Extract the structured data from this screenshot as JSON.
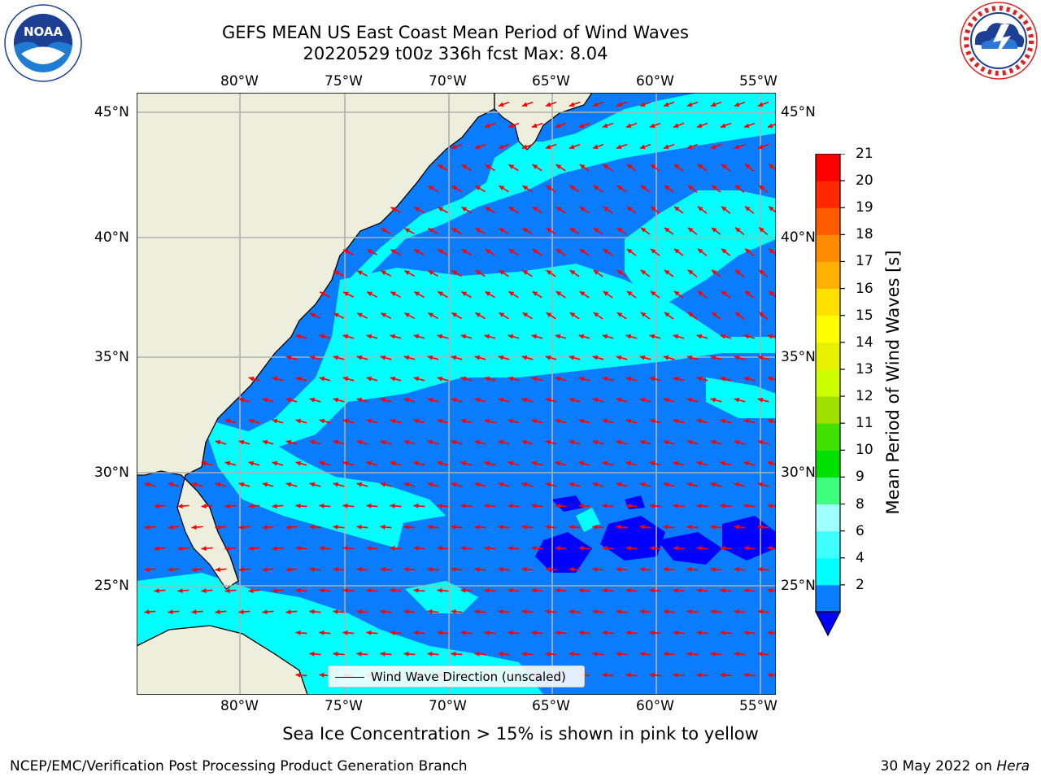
{
  "header": {
    "title_line1": "GEFS MEAN US East Coast Mean Period of Wind Waves",
    "title_line2": "20220529 t00z 336h fcst   Max: 8.04"
  },
  "logos": {
    "left": "NOAA",
    "left_ring": "NATIONAL OCEANIC AND ATMOSPHERIC ADMINISTRATION · U.S. DEPARTMENT OF COMMERCE",
    "right_ring": "NATIONAL WEATHER SERVICE"
  },
  "map": {
    "lon_labels": [
      "80°W",
      "75°W",
      "70°W",
      "65°W",
      "60°W",
      "55°W"
    ],
    "lat_labels": [
      "45°N",
      "40°N",
      "35°N",
      "30°N",
      "25°N"
    ],
    "lon_range": [
      -85,
      -54.7
    ],
    "lat_range": [
      20.5,
      46
    ],
    "legend_text": "Wind Wave Direction (unscaled)",
    "colors": {
      "land": "#eeeedc",
      "band_2_4": "#0a7cff",
      "band_4_6": "#00ffff",
      "band_below_2": "#0000ff",
      "band_6_8": "#40ffff",
      "arrow": "#ff0000",
      "grid": "#b0b0b0"
    }
  },
  "colorbar": {
    "title": "Mean Period of Wind Waves [s]",
    "tick_labels": [
      "21",
      "20",
      "19",
      "18",
      "17",
      "16",
      "15",
      "14",
      "13",
      "12",
      "11",
      "10",
      "9",
      "8",
      "6",
      "4",
      "2"
    ],
    "levels": [
      2,
      4,
      6,
      8,
      9,
      10,
      11,
      12,
      13,
      14,
      15,
      16,
      17,
      18,
      19,
      20,
      21
    ],
    "colors_bottom_to_top": [
      "#0a7cff",
      "#00ffff",
      "#40ffff",
      "#a0ffff",
      "#40ff80",
      "#00e000",
      "#40e000",
      "#a0e000",
      "#ccff00",
      "#e6f000",
      "#ffff00",
      "#ffe000",
      "#ffb000",
      "#ff8c00",
      "#ff5a00",
      "#ff2800",
      "#ff0000"
    ],
    "under_color": "#0000ff"
  },
  "footer": {
    "note": "Sea Ice Concentration > 15% is shown in pink to yellow",
    "credit_left": "NCEP/EMC/Verification Post Processing Product Generation Branch",
    "credit_right_date": "30 May 2022 on ",
    "credit_right_host": "Hera"
  }
}
